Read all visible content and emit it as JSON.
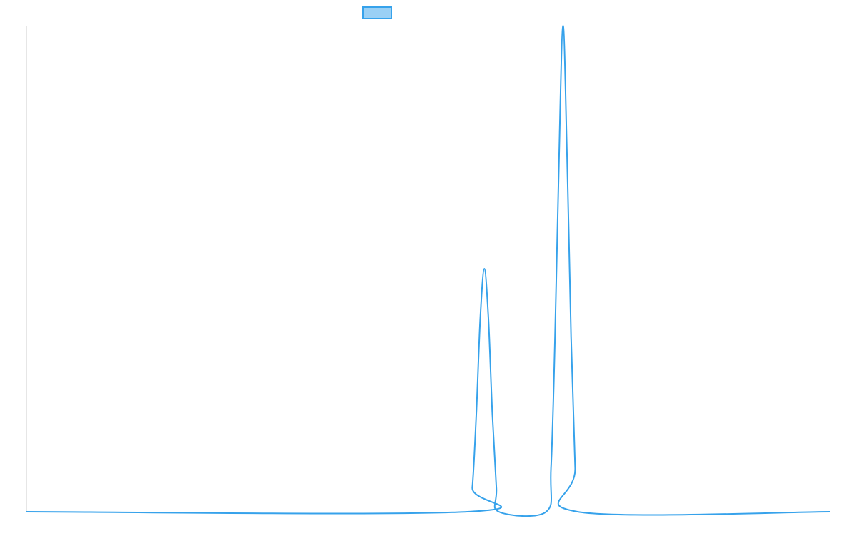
{
  "chart_data": {
    "type": "line",
    "title": "",
    "xlabel": "",
    "ylabel": "",
    "xlim": [
      0,
      100
    ],
    "ylim": [
      0,
      1
    ],
    "grid": false,
    "legend": {
      "placement": "top-center",
      "entries": [
        {
          "label": "",
          "color": "#36a2eb"
        }
      ]
    },
    "series": [
      {
        "color": "#36a2eb",
        "fill": "#9ad0f5",
        "x": [
          0,
          54.9,
          55.5,
          56.0,
          56.5,
          57.0,
          57.5,
          58.0,
          58.5,
          58.8,
          64.7,
          65.3,
          65.8,
          66.3,
          66.8,
          67.3,
          67.8,
          68.3,
          68.6,
          100
        ],
        "values": [
          0,
          0,
          0.05,
          0.2,
          0.4,
          0.5,
          0.4,
          0.2,
          0.05,
          0,
          0,
          0.09,
          0.36,
          0.73,
          1.0,
          0.73,
          0.36,
          0.09,
          0,
          0
        ]
      }
    ]
  }
}
